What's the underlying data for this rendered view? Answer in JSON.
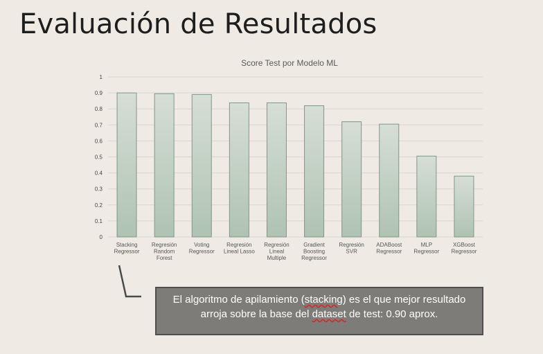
{
  "slide": {
    "title": "Evaluación de Resultados"
  },
  "chart_data": {
    "type": "bar",
    "title": "Score Test por Modelo ML",
    "xlabel": "",
    "ylabel": "",
    "ylim": [
      0,
      1
    ],
    "yticks": [
      0,
      0.1,
      0.2,
      0.3,
      0.4,
      0.5,
      0.6,
      0.7,
      0.8,
      0.9,
      1
    ],
    "grid": true,
    "categories": [
      [
        "Stacking",
        "Regressor"
      ],
      [
        "Regresión",
        "Random",
        "Forest"
      ],
      [
        "Voting",
        "Regressor"
      ],
      [
        "Regresión",
        "Lineal Lasso"
      ],
      [
        "Regresión",
        "Lineal",
        "Multiple"
      ],
      [
        "Gradient",
        "Boosting",
        "Regressor"
      ],
      [
        "Regresión",
        "SVR"
      ],
      [
        "ADABoost",
        "Regressor"
      ],
      [
        "MLP",
        "Regressor"
      ],
      [
        "XGBoost",
        "Regressor"
      ]
    ],
    "values": [
      0.9,
      0.895,
      0.89,
      0.838,
      0.838,
      0.82,
      0.72,
      0.705,
      0.505,
      0.38
    ],
    "bar_color": "#b7c9b9",
    "bar_edge_color": "#7b9a84"
  },
  "callout": {
    "text_before": "El algoritmo de apilamiento (",
    "word1": "stacking",
    "text_mid": ") es el que mejor resultado arroja sobre la base del ",
    "word2": "dataset",
    "text_after": " de test: 0.90 aprox."
  }
}
